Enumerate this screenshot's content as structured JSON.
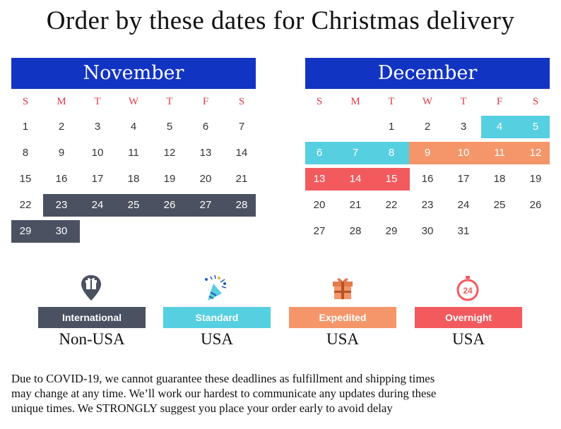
{
  "title": "Order by these dates for Christmas delivery",
  "colors": {
    "month_header": "#1234c3",
    "weekday_text": "#e23c44",
    "international": "#4a5161",
    "standard": "#56cfe1",
    "expedited": "#f5966a",
    "overnight": "#f25a5e"
  },
  "weekdays": [
    "S",
    "M",
    "T",
    "W",
    "T",
    "F",
    "S"
  ],
  "calendars": [
    {
      "month": "November",
      "first_weekday": 0,
      "num_days": 30,
      "shipping": {
        "international": [
          23,
          24,
          25,
          26,
          27,
          28,
          29,
          30
        ]
      }
    },
    {
      "month": "December",
      "first_weekday": 2,
      "num_days": 31,
      "shipping": {
        "standard": [
          4,
          5,
          6,
          7,
          8
        ],
        "expedited": [
          9,
          10,
          11,
          12
        ],
        "overnight": [
          13,
          14,
          15
        ]
      }
    }
  ],
  "legend": [
    {
      "key": "international",
      "icon": "gift-location-pin-icon",
      "label": "International",
      "sublabel": "Non-USA"
    },
    {
      "key": "standard",
      "icon": "party-popper-icon",
      "label": "Standard",
      "sublabel": "USA"
    },
    {
      "key": "expedited",
      "icon": "gift-box-icon",
      "label": "Expedited",
      "sublabel": "USA"
    },
    {
      "key": "overnight",
      "icon": "24-hour-stopwatch-icon",
      "label": "Overnight",
      "sublabel": "USA"
    }
  ],
  "notice": [
    "Due to COVID-19, we cannot guarantee these deadlines as fulfillment and shipping times",
    "may change at any time. We’ll work our hardest to communicate any updates during these",
    "unique times. We STRONGLY suggest you place your order early to avoid delay"
  ]
}
